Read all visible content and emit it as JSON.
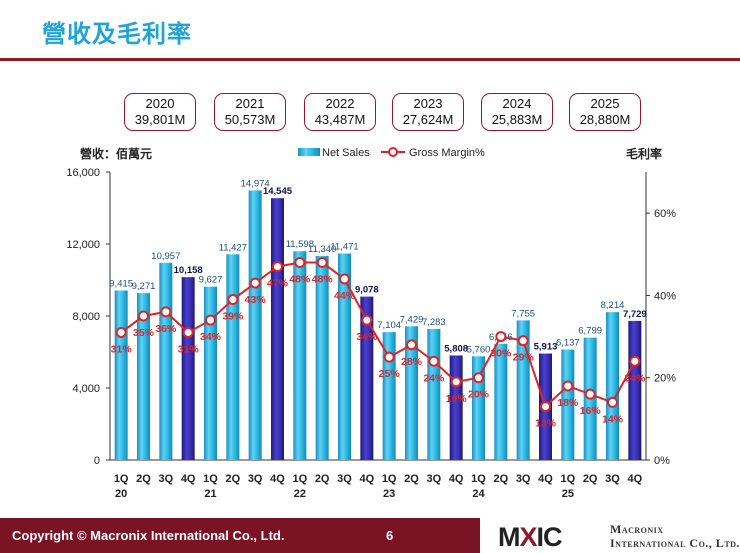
{
  "header": {
    "title": "營收及毛利率"
  },
  "year_boxes": [
    {
      "year": "2020",
      "amount": "39,801M"
    },
    {
      "year": "2021",
      "amount": "50,573M"
    },
    {
      "year": "2022",
      "amount": "43,487M"
    },
    {
      "year": "2023",
      "amount": "27,624M"
    },
    {
      "year": "2024",
      "amount": "25,883M"
    },
    {
      "year": "2025",
      "amount": "28,880M"
    }
  ],
  "footer": {
    "copyright": "Copyright © Macronix International Co., Ltd.",
    "page_number": "6",
    "logo_left": "M",
    "logo_x": "X",
    "logo_right": "IC",
    "company_line1": "Macronix",
    "company_line2": "International Co., Ltd."
  },
  "colors": {
    "bar": "#2bb9e3",
    "bar_q4": "#3a2fb0",
    "line": "#d9262c",
    "accent": "#8c1a2a"
  },
  "chart_data": {
    "type": "bar",
    "left_axis_label": "營收：佰萬元",
    "right_axis_label": "毛利率",
    "legend": {
      "bar": "Net Sales",
      "line": "Gross Margin%"
    },
    "categories": [
      "1Q",
      "2Q",
      "3Q",
      "4Q",
      "1Q",
      "2Q",
      "3Q",
      "4Q",
      "1Q",
      "2Q",
      "3Q",
      "4Q",
      "1Q",
      "2Q",
      "3Q",
      "4Q",
      "1Q",
      "2Q",
      "3Q",
      "4Q",
      "1Q",
      "2Q",
      "3Q",
      "4Q"
    ],
    "year_groups": [
      {
        "label": "20",
        "index": 0
      },
      {
        "label": "21",
        "index": 4
      },
      {
        "label": "22",
        "index": 8
      },
      {
        "label": "23",
        "index": 12
      },
      {
        "label": "24",
        "index": 16
      },
      {
        "label": "25",
        "index": 20
      }
    ],
    "series": [
      {
        "name": "Net Sales",
        "axis": "left",
        "values": [
          9415,
          9271,
          10957,
          10158,
          9627,
          11427,
          14974,
          14545,
          11598,
          11340,
          11471,
          9078,
          7104,
          7429,
          7283,
          5808,
          5760,
          6456,
          7755,
          5913,
          6137,
          6799,
          8214,
          7729
        ],
        "labels": [
          "9,415",
          "9,271",
          "10,957",
          "10,158",
          "9,627",
          "11,427",
          "14,974",
          "14,545",
          "11,598",
          "11,340",
          "11,471",
          "9,078",
          "7,104",
          "7,429",
          "7,283",
          "5,808",
          "5,760",
          "6,456",
          "7,755",
          "5,913",
          "6,137",
          "6,799",
          "8,214",
          "7,729"
        ]
      },
      {
        "name": "Gross Margin%",
        "axis": "right",
        "values": [
          31,
          35,
          36,
          31,
          34,
          39,
          43,
          47,
          48,
          48,
          44,
          34,
          25,
          28,
          24,
          19,
          20,
          30,
          29,
          13,
          18,
          16,
          14,
          24
        ],
        "labels": [
          "31%",
          "35%",
          "36%",
          "31%",
          "34%",
          "39%",
          "43%",
          "47%",
          "48%",
          "48%",
          "44%",
          "34%",
          "25%",
          "28%",
          "24%",
          "19%",
          "20%",
          "30%",
          "29%",
          "13%",
          "18%",
          "16%",
          "14%",
          "24%"
        ]
      }
    ],
    "left_axis": {
      "min": 0,
      "max": 16000,
      "ticks": [
        0,
        4000,
        8000,
        12000,
        16000
      ],
      "tick_labels": [
        "0",
        "4,000",
        "8,000",
        "12,000",
        "16,000"
      ]
    },
    "right_axis": {
      "min": 0,
      "max": 70,
      "ticks": [
        0,
        20,
        40,
        60
      ],
      "tick_labels": [
        "0%",
        "20%",
        "40%",
        "60%"
      ]
    }
  }
}
